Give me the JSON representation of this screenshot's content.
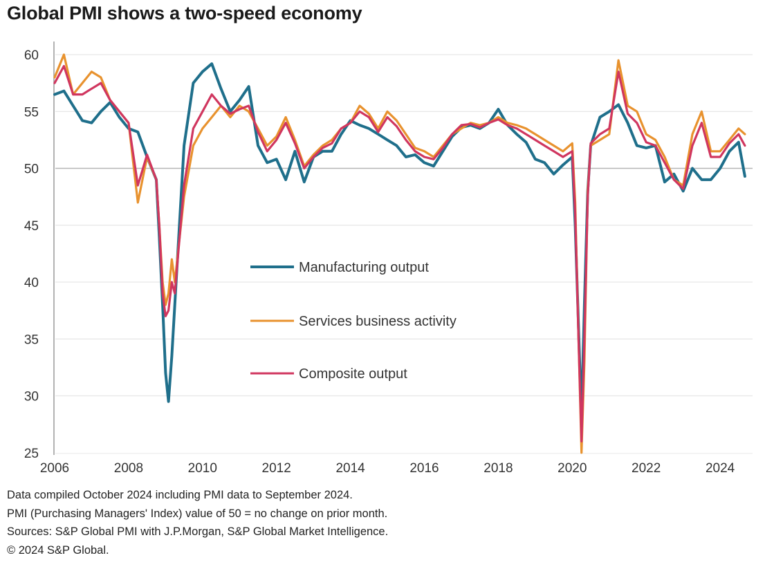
{
  "chart_data": {
    "type": "line",
    "title": "Global PMI shows a two-speed economy",
    "xlabel": "",
    "ylabel": "",
    "xlim": [
      2006,
      2024.75
    ],
    "ylim": [
      25,
      61
    ],
    "yticks": [
      25,
      30,
      35,
      40,
      45,
      50,
      55,
      60
    ],
    "xticks": [
      "2006",
      "2008",
      "2010",
      "2012",
      "2014",
      "2016",
      "2018",
      "2020",
      "2022",
      "2024"
    ],
    "grid": true,
    "reference_line": 50,
    "legend_position": "center",
    "x": [
      2006.0,
      2006.25,
      2006.5,
      2006.75,
      2007.0,
      2007.25,
      2007.5,
      2007.75,
      2008.0,
      2008.25,
      2008.5,
      2008.75,
      2008.83,
      2008.92,
      2009.0,
      2009.08,
      2009.17,
      2009.25,
      2009.5,
      2009.75,
      2010.0,
      2010.25,
      2010.5,
      2010.75,
      2011.0,
      2011.25,
      2011.5,
      2011.75,
      2012.0,
      2012.25,
      2012.5,
      2012.75,
      2013.0,
      2013.25,
      2013.5,
      2013.75,
      2014.0,
      2014.25,
      2014.5,
      2014.75,
      2015.0,
      2015.25,
      2015.5,
      2015.75,
      2016.0,
      2016.25,
      2016.5,
      2016.75,
      2017.0,
      2017.25,
      2017.5,
      2017.75,
      2018.0,
      2018.25,
      2018.5,
      2018.75,
      2019.0,
      2019.25,
      2019.5,
      2019.75,
      2020.0,
      2020.08,
      2020.17,
      2020.25,
      2020.33,
      2020.42,
      2020.5,
      2020.75,
      2021.0,
      2021.25,
      2021.5,
      2021.75,
      2022.0,
      2022.25,
      2022.5,
      2022.75,
      2023.0,
      2023.25,
      2023.5,
      2023.75,
      2024.0,
      2024.25,
      2024.5,
      2024.67
    ],
    "series": [
      {
        "name": "Manufacturing output",
        "color": "#1f6f8b",
        "values": [
          56.5,
          56.8,
          55.5,
          54.2,
          54.0,
          55.0,
          55.8,
          54.5,
          53.5,
          53.2,
          51.0,
          49.0,
          44.0,
          38.0,
          32.0,
          29.5,
          33.5,
          38.0,
          52.0,
          57.5,
          58.5,
          59.2,
          57.0,
          55.0,
          56.0,
          57.2,
          52.0,
          50.5,
          50.8,
          49.0,
          51.5,
          48.8,
          51.0,
          51.5,
          51.5,
          53.0,
          54.2,
          53.8,
          53.5,
          53.0,
          52.5,
          52.0,
          51.0,
          51.2,
          50.5,
          50.2,
          51.5,
          52.8,
          53.6,
          53.8,
          53.5,
          54.0,
          55.2,
          53.8,
          53.0,
          52.3,
          50.8,
          50.5,
          49.5,
          50.3,
          51.0,
          45.0,
          36.0,
          28.0,
          38.0,
          48.0,
          52.0,
          54.5,
          55.0,
          55.6,
          54.0,
          52.0,
          51.8,
          52.0,
          48.8,
          49.5,
          48.0,
          50.0,
          49.0,
          49.0,
          50.0,
          51.5,
          52.3,
          49.3
        ]
      },
      {
        "name": "Services business activity",
        "color": "#e8922e",
        "values": [
          58.0,
          60.0,
          56.5,
          57.5,
          58.5,
          58.0,
          56.0,
          55.0,
          54.0,
          47.0,
          51.0,
          49.0,
          45.0,
          40.0,
          38.0,
          39.0,
          42.0,
          40.0,
          47.5,
          52.0,
          53.5,
          54.5,
          55.5,
          54.5,
          55.5,
          55.0,
          53.5,
          52.0,
          52.8,
          54.5,
          52.5,
          50.2,
          51.2,
          52.0,
          52.5,
          53.5,
          54.0,
          55.5,
          54.8,
          53.5,
          55.0,
          54.2,
          53.0,
          51.8,
          51.5,
          51.0,
          52.0,
          53.0,
          53.5,
          54.0,
          53.8,
          54.0,
          54.5,
          54.0,
          53.8,
          53.5,
          53.0,
          52.5,
          52.0,
          51.5,
          52.2,
          47.0,
          35.0,
          25.0,
          33.0,
          48.0,
          52.0,
          52.5,
          53.0,
          59.5,
          55.5,
          55.0,
          53.0,
          52.5,
          51.0,
          49.0,
          48.5,
          53.0,
          55.0,
          51.5,
          51.5,
          52.5,
          53.5,
          53.0
        ]
      },
      {
        "name": "Composite output",
        "color": "#d0365f",
        "values": [
          57.5,
          59.0,
          56.5,
          56.5,
          57.0,
          57.5,
          56.0,
          55.0,
          54.0,
          48.5,
          51.2,
          49.0,
          45.0,
          39.0,
          37.0,
          37.5,
          40.0,
          39.0,
          48.5,
          53.5,
          55.0,
          56.5,
          55.5,
          54.8,
          55.2,
          55.5,
          53.2,
          51.5,
          52.5,
          54.0,
          52.2,
          50.0,
          51.0,
          51.8,
          52.2,
          53.5,
          54.0,
          55.0,
          54.5,
          53.2,
          54.5,
          53.7,
          52.5,
          51.5,
          51.0,
          50.8,
          51.8,
          53.0,
          53.8,
          53.9,
          53.6,
          54.0,
          54.3,
          53.8,
          53.5,
          53.0,
          52.5,
          52.0,
          51.5,
          51.0,
          51.5,
          46.0,
          35.0,
          26.0,
          35.0,
          47.5,
          52.2,
          53.0,
          53.5,
          58.5,
          54.8,
          54.0,
          52.3,
          52.0,
          50.5,
          49.0,
          48.2,
          52.0,
          54.0,
          51.0,
          51.0,
          52.2,
          53.0,
          52.0
        ]
      }
    ]
  },
  "header": {
    "title": "Global PMI shows a two-speed economy"
  },
  "legend": [
    {
      "label": "Manufacturing output",
      "color": "#1f6f8b"
    },
    {
      "label": "Services business activity",
      "color": "#e8922e"
    },
    {
      "label": "Composite output",
      "color": "#d0365f"
    }
  ],
  "notes": [
    "Data compiled October 2024 including PMI data to September 2024.",
    "PMI (Purchasing Managers' Index) value of 50 = no change on prior month.",
    "Sources: S&P Global PMI with J.P.Morgan, S&P Global Market Intelligence.",
    "© 2024 S&P Global."
  ]
}
